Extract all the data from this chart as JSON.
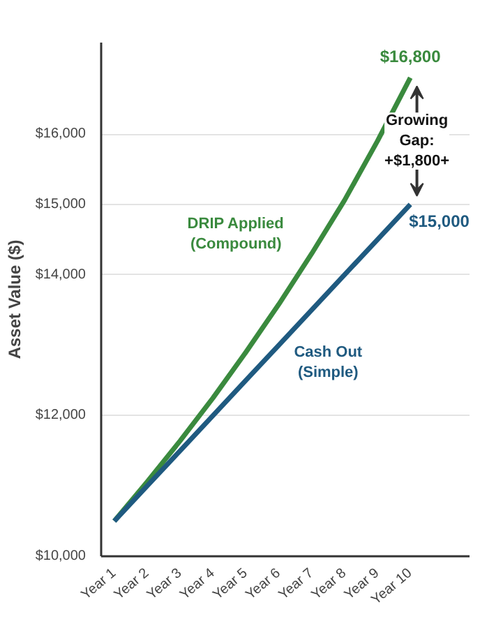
{
  "chart_data": {
    "type": "line",
    "ylabel": "Asset Value ($)",
    "categories": [
      "Year 1",
      "Year 2",
      "Year 3",
      "Year 4",
      "Year 5",
      "Year 6",
      "Year 7",
      "Year 8",
      "Year 9",
      "Year 10"
    ],
    "series": [
      {
        "name": "DRIP Applied\n(Compound)",
        "color": "#3a8a3e",
        "values": [
          10500,
          11060,
          11640,
          12250,
          12900,
          13580,
          14300,
          15060,
          15900,
          16800
        ],
        "value_labels": [
          null,
          null,
          null,
          null,
          null,
          null,
          null,
          null,
          null,
          "$16,800"
        ]
      },
      {
        "name": "Cash Out\n(Simple)",
        "color": "#1f5a80",
        "values": [
          10500,
          11000,
          11500,
          12000,
          12500,
          13000,
          13500,
          14000,
          14500,
          15000
        ],
        "value_labels": [
          null,
          null,
          null,
          null,
          null,
          null,
          null,
          null,
          null,
          "$15,000"
        ]
      }
    ],
    "annotations": [
      "Growing\nGap:\n+$1,800+"
    ],
    "ylim": [
      10000,
      17300
    ],
    "yticks": [
      {
        "value": 10000,
        "label": "$10,000"
      },
      {
        "value": 12000,
        "label": "$12,000"
      },
      {
        "value": 14000,
        "label": "$14,000"
      },
      {
        "value": 15000,
        "label": "$15,000"
      },
      {
        "value": 16000,
        "label": "$16,000"
      }
    ],
    "grid": "y",
    "line_style": "solid",
    "marker": "none"
  }
}
